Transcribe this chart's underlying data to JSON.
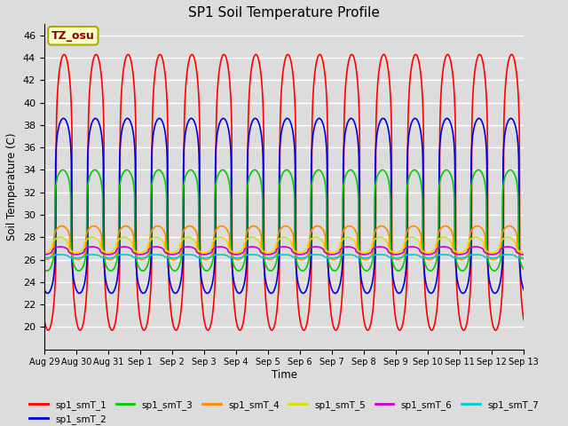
{
  "title": "SP1 Soil Temperature Profile",
  "xlabel": "Time",
  "ylabel": "Soil Temperature (C)",
  "ylim": [
    18,
    47
  ],
  "yticks": [
    20,
    22,
    24,
    26,
    28,
    30,
    32,
    34,
    36,
    38,
    40,
    42,
    44,
    46
  ],
  "background_color": "#dcdcdc",
  "plot_bg_color": "#dcdcdc",
  "annotation_text": "TZ_osu",
  "annotation_color": "#8b0000",
  "annotation_bg": "#ffffcc",
  "series": [
    {
      "name": "sp1_smT_1",
      "color": "#ff0000",
      "lw": 1.2,
      "amplitude": 12.3,
      "mean": 32.0,
      "phase_shift": 0.62,
      "sharpness": 4.0
    },
    {
      "name": "sp1_smT_2",
      "color": "#0000dd",
      "lw": 1.2,
      "amplitude": 7.8,
      "mean": 30.8,
      "phase_shift": 0.6,
      "sharpness": 5.0
    },
    {
      "name": "sp1_smT_3",
      "color": "#00cc00",
      "lw": 1.2,
      "amplitude": 4.5,
      "mean": 29.5,
      "phase_shift": 0.58,
      "sharpness": 4.5
    },
    {
      "name": "sp1_smT_4",
      "color": "#ff8800",
      "lw": 1.2,
      "amplitude": 1.5,
      "mean": 27.5,
      "phase_shift": 0.55,
      "sharpness": 3.0
    },
    {
      "name": "sp1_smT_5",
      "color": "#dddd00",
      "lw": 1.2,
      "amplitude": 0.7,
      "mean": 27.3,
      "phase_shift": 0.5,
      "sharpness": 2.0
    },
    {
      "name": "sp1_smT_6",
      "color": "#cc00cc",
      "lw": 1.2,
      "amplitude": 0.35,
      "mean": 26.8,
      "phase_shift": 0.5,
      "sharpness": 2.0
    },
    {
      "name": "sp1_smT_7",
      "color": "#00cccc",
      "lw": 1.2,
      "amplitude": 0.15,
      "mean": 26.3,
      "phase_shift": 0.5,
      "sharpness": 2.0
    }
  ],
  "x_total_days": 15,
  "n_points": 3000,
  "xtick_labels": [
    "Aug 29",
    "Aug 30",
    "Aug 31",
    "Sep 1",
    "Sep 2",
    "Sep 3",
    "Sep 4",
    "Sep 5",
    "Sep 6",
    "Sep 7",
    "Sep 8",
    "Sep 9",
    "Sep 10",
    "Sep 11",
    "Sep 12",
    "Sep 13"
  ],
  "xtick_positions": [
    0,
    1,
    2,
    3,
    4,
    5,
    6,
    7,
    8,
    9,
    10,
    11,
    12,
    13,
    14,
    15
  ],
  "legend_entries": [
    {
      "name": "sp1_smT_1",
      "color": "#ff0000"
    },
    {
      "name": "sp1_smT_2",
      "color": "#0000dd"
    },
    {
      "name": "sp1_smT_3",
      "color": "#00cc00"
    },
    {
      "name": "sp1_smT_4",
      "color": "#ff8800"
    },
    {
      "name": "sp1_smT_5",
      "color": "#dddd00"
    },
    {
      "name": "sp1_smT_6",
      "color": "#cc00cc"
    },
    {
      "name": "sp1_smT_7",
      "color": "#00cccc"
    }
  ]
}
